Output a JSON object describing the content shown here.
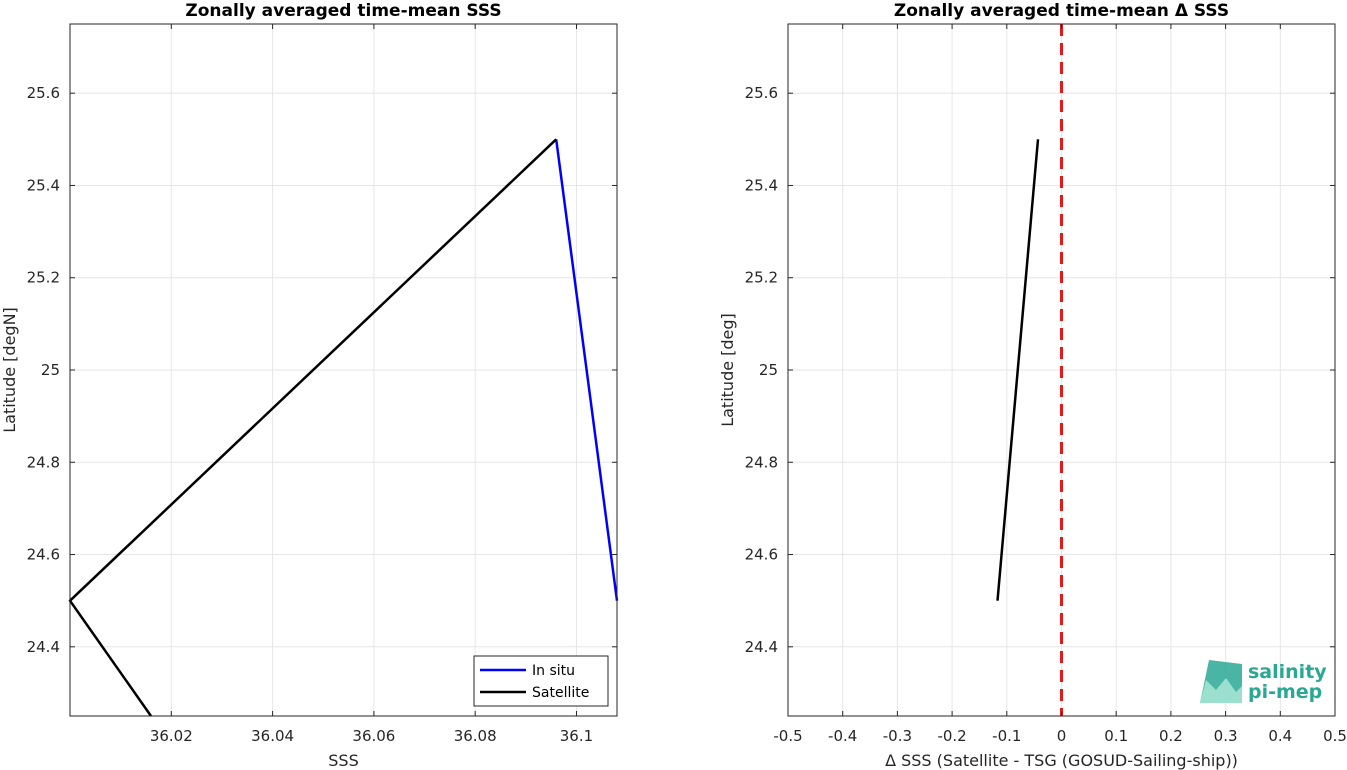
{
  "colors": {
    "insitu": "#0000ff",
    "satellite": "#000000",
    "zero_line": "#e31a1c",
    "grid": "#e6e6e6",
    "axes": "#262626",
    "logo": "#2aa894"
  },
  "logo": {
    "line1": "salinity",
    "line2": "pi-mep"
  },
  "chart_data": [
    {
      "type": "line",
      "title": "Zonally averaged time-mean SSS",
      "xlabel": "SSS",
      "ylabel": "Latitude [degN]",
      "xlim": [
        36.0,
        36.108
      ],
      "ylim": [
        24.25,
        25.75
      ],
      "xticks": [
        36.02,
        36.04,
        36.06,
        36.08,
        36.1
      ],
      "xtick_labels": [
        "36.02",
        "36.04",
        "36.06",
        "36.08",
        "36.1"
      ],
      "yticks": [
        24.4,
        24.6,
        24.8,
        25.0,
        25.2,
        25.4,
        25.6
      ],
      "ytick_labels": [
        "24.4",
        "24.6",
        "24.8",
        "25",
        "25.2",
        "25.4",
        "25.6"
      ],
      "grid": true,
      "legend_position": "bottom-right",
      "series": [
        {
          "name": "In situ",
          "color_key": "insitu",
          "points": [
            [
              36.108,
              24.5
            ],
            [
              36.096,
              25.5
            ]
          ]
        },
        {
          "name": "Satellite",
          "color_key": "satellite",
          "points": [
            [
              36.016,
              24.25
            ],
            [
              36.0,
              24.5
            ],
            [
              36.096,
              25.5
            ]
          ]
        }
      ]
    },
    {
      "type": "line",
      "title": "Zonally averaged time-mean Δ SSS",
      "xlabel": "Δ SSS (Satellite - TSG (GOSUD-Sailing-ship))",
      "ylabel": "Latitude [deg]",
      "xlim": [
        -0.5,
        0.5
      ],
      "ylim": [
        24.25,
        25.75
      ],
      "xticks": [
        -0.5,
        -0.4,
        -0.3,
        -0.2,
        -0.1,
        0,
        0.1,
        0.2,
        0.3,
        0.4,
        0.5
      ],
      "xtick_labels": [
        "-0.5",
        "-0.4",
        "-0.3",
        "-0.2",
        "-0.1",
        "0",
        "0.1",
        "0.2",
        "0.3",
        "0.4",
        "0.5"
      ],
      "yticks": [
        24.4,
        24.6,
        24.8,
        25.0,
        25.2,
        25.4,
        25.6
      ],
      "ytick_labels": [
        "24.4",
        "24.6",
        "24.8",
        "25",
        "25.2",
        "25.4",
        "25.6"
      ],
      "grid": true,
      "series": [
        {
          "color_key": "satellite",
          "points": [
            [
              -0.117,
              24.5
            ],
            [
              -0.043,
              25.5
            ]
          ]
        }
      ],
      "reference_lines": [
        {
          "axis": "x",
          "value": 0,
          "style": "dashed",
          "color_key": "zero_line"
        }
      ]
    }
  ]
}
